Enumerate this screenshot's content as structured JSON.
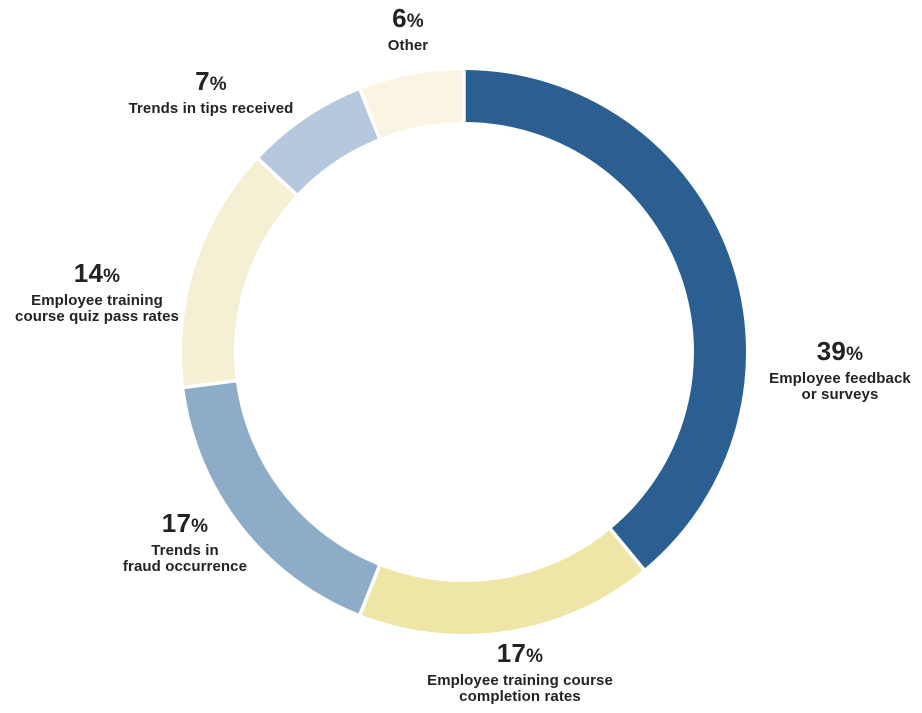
{
  "chart_data": {
    "type": "pie",
    "variant": "donut",
    "title": "",
    "legend_position": "labels-around-chart",
    "percent_sign": "%",
    "background_color": "#FFFFFF",
    "text_color": "#262223",
    "separator_color": "#FFFFFF",
    "segments": [
      {
        "id": "employee-feedback-or-surveys",
        "label": "Employee feedback or surveys",
        "label_lines": [
          "Employee feedback",
          "or surveys"
        ],
        "value": 39,
        "pct": "39",
        "color": "#2B5F92"
      },
      {
        "id": "employee-training-course-completion-rates",
        "label": "Employee training course completion rates",
        "label_lines": [
          "Employee training course",
          "completion rates"
        ],
        "value": 17,
        "pct": "17",
        "color": "#EFE5A6"
      },
      {
        "id": "trends-in-fraud-occurrence",
        "label": "Trends in fraud occurrence",
        "label_lines": [
          "Trends in",
          "fraud occurrence"
        ],
        "value": 17,
        "pct": "17",
        "color": "#8CACC8"
      },
      {
        "id": "employee-training-course-quiz-pass-rates",
        "label": "Employee training course quiz pass rates",
        "label_lines": [
          "Employee training",
          "course quiz pass rates"
        ],
        "value": 14,
        "pct": "14",
        "color": "#F5EFD3"
      },
      {
        "id": "trends-in-tips-received",
        "label": "Trends in tips received",
        "label_lines": [
          "Trends in tips received"
        ],
        "value": 7,
        "pct": "7",
        "color": "#B6C8DD"
      },
      {
        "id": "other",
        "label": "Other",
        "label_lines": [
          "Other"
        ],
        "value": 6,
        "pct": "6",
        "color": "#FAF4E3"
      }
    ]
  }
}
